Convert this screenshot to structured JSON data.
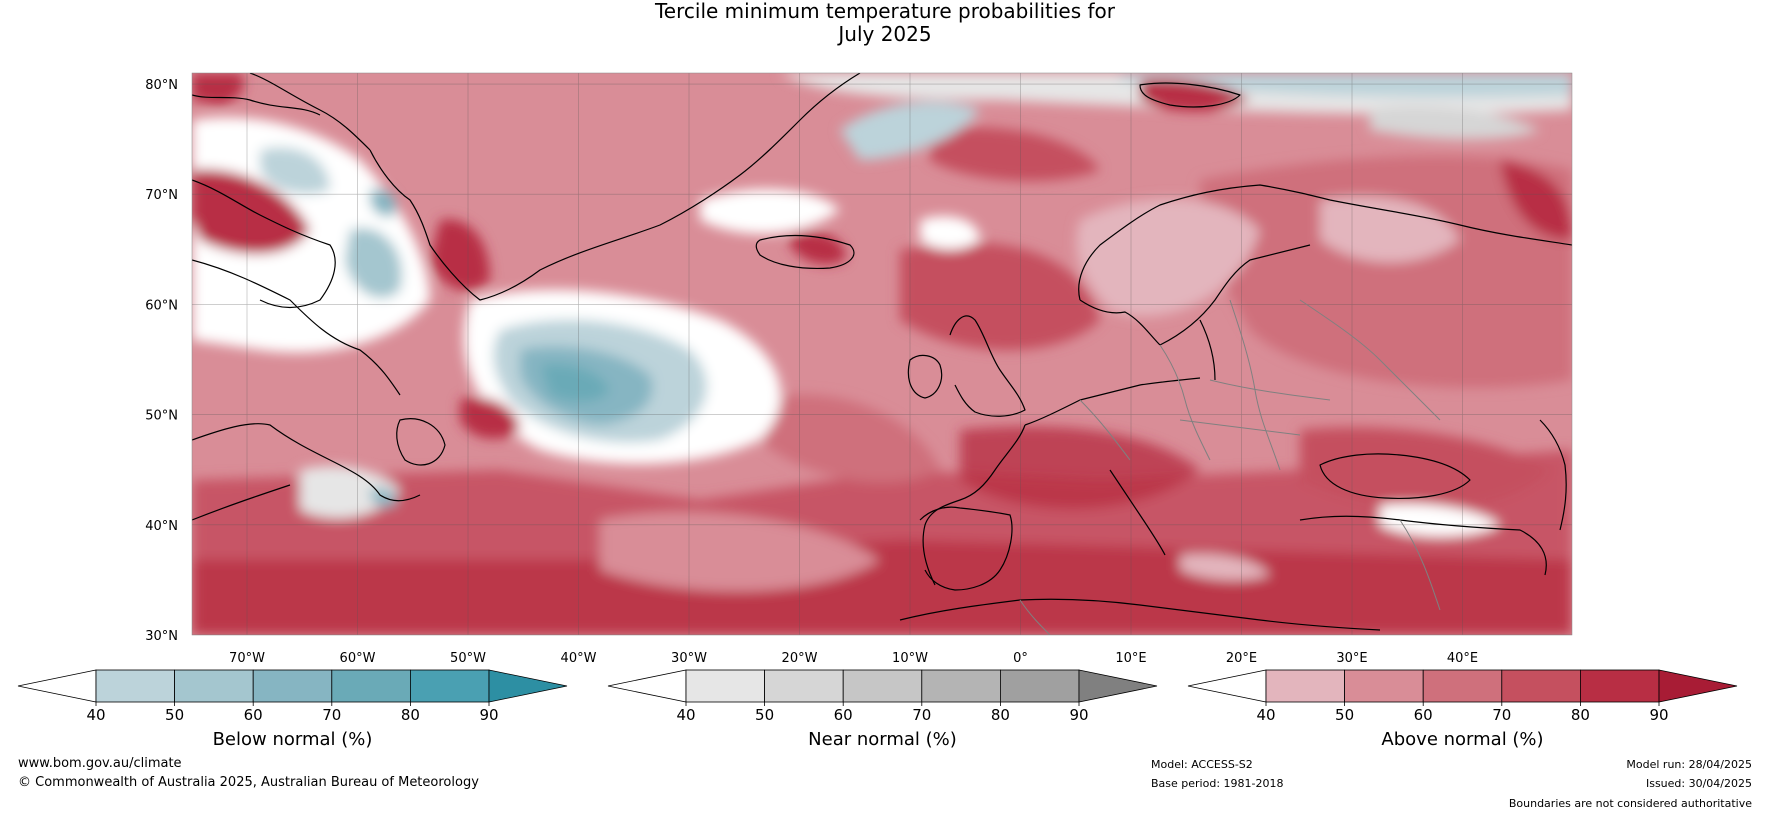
{
  "title": {
    "line1": "Tercile minimum temperature probabilities for",
    "line2": "July 2025"
  },
  "map": {
    "lat_labels": [
      "80°N",
      "70°N",
      "60°N",
      "50°N",
      "40°N",
      "30°N"
    ],
    "lon_labels": [
      "70°W",
      "60°W",
      "50°W",
      "40°W",
      "30°W",
      "20°W",
      "10°W",
      "0°",
      "10°E",
      "20°E",
      "30°E",
      "40°E"
    ],
    "ocean_base_color": "#d98d97",
    "land_line_color": "#000000",
    "border_color": "#808080"
  },
  "colorbars": [
    {
      "title": "Below normal (%)",
      "ticks": [
        "40",
        "50",
        "60",
        "70",
        "80",
        "90"
      ],
      "colors": [
        "#ffffff",
        "#bcd3da",
        "#a4c6cf",
        "#86b5c2",
        "#6aaab7",
        "#4aa0b2",
        "#2d8fa3"
      ]
    },
    {
      "title": "Near normal (%)",
      "ticks": [
        "40",
        "50",
        "60",
        "70",
        "80",
        "90"
      ],
      "colors": [
        "#ffffff",
        "#e6e6e6",
        "#d6d6d6",
        "#c6c6c6",
        "#b4b4b4",
        "#a0a0a0",
        "#808080"
      ]
    },
    {
      "title": "Above normal (%)",
      "ticks": [
        "40",
        "50",
        "60",
        "70",
        "80",
        "90"
      ],
      "colors": [
        "#ffffff",
        "#e3b5bd",
        "#d98d97",
        "#cf707c",
        "#c5505f",
        "#b82e44",
        "#a81c35"
      ]
    }
  ],
  "footer": {
    "website": "www.bom.gov.au/climate",
    "copyright": "© Commonwealth of Australia 2025, Australian Bureau of Meteorology",
    "model": "Model: ACCESS-S2",
    "base_period": "Base period: 1981-2018",
    "model_run": "Model run: 28/04/2025",
    "issued": "Issued: 30/04/2025",
    "disclaimer": "Boundaries are not considered authoritative"
  }
}
